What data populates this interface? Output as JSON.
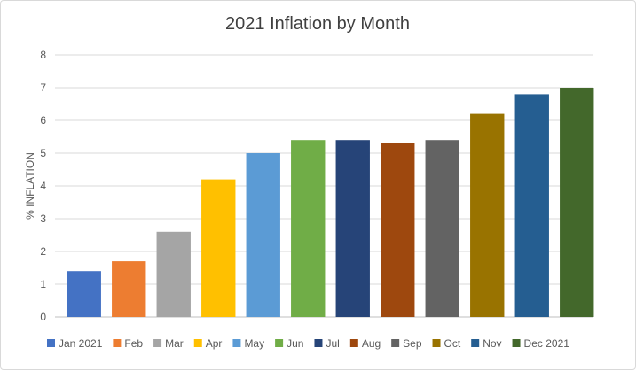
{
  "chart_data": {
    "type": "bar",
    "title": "2021 Inflation by Month",
    "xlabel": "",
    "ylabel": "% INFLATION",
    "ylim": [
      0,
      8
    ],
    "yticks": [
      0,
      1,
      2,
      3,
      4,
      5,
      6,
      7,
      8
    ],
    "grid": true,
    "legend_position": "bottom",
    "categories": [
      "Jan 2021",
      "Feb",
      "Mar",
      "Apr",
      "May",
      "Jun",
      "Jul",
      "Aug",
      "Sep",
      "Oct",
      "Nov",
      "Dec 2021"
    ],
    "values": [
      1.4,
      1.7,
      2.6,
      4.2,
      5.0,
      5.4,
      5.4,
      5.3,
      5.4,
      6.2,
      6.8,
      7.0
    ],
    "colors": [
      "#4472C4",
      "#ED7D31",
      "#A5A5A5",
      "#FFC000",
      "#5B9BD5",
      "#70AD47",
      "#264478",
      "#9E480E",
      "#636363",
      "#997300",
      "#255E91",
      "#43682B"
    ]
  }
}
